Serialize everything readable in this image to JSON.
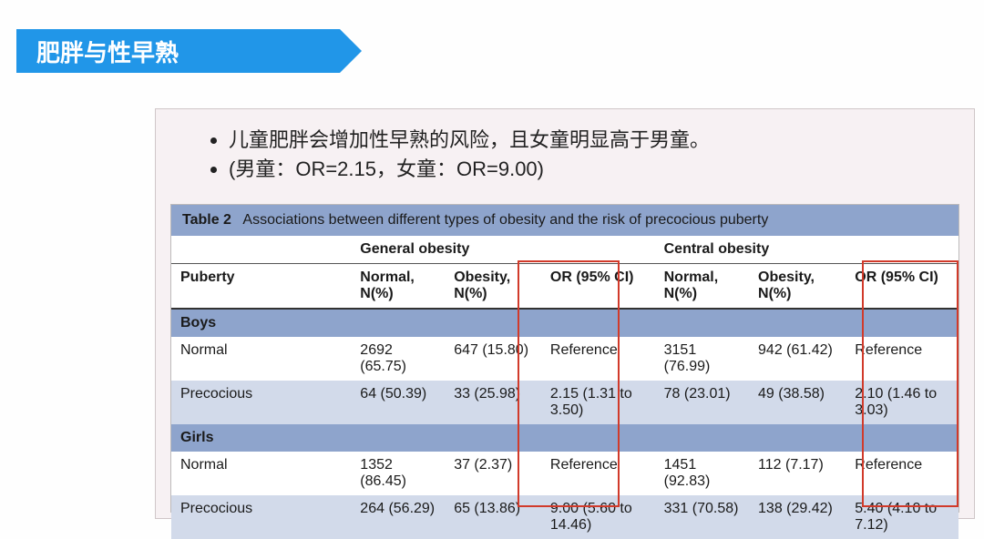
{
  "title": "肥胖与性早熟",
  "bullets": [
    "儿童肥胖会增加性早熟的风险，且女童明显高于男童。",
    "(男童：OR=2.15，女童：OR=9.00)"
  ],
  "table": {
    "caption_label": "Table 2",
    "caption_text": "Associations between different types of obesity and the risk of precocious puberty",
    "group_headers": [
      "",
      "General obesity",
      "Central obesity"
    ],
    "col_headers": [
      "Puberty",
      "Normal, N(%)",
      "Obesity, N(%)",
      "OR (95% CI)",
      "Normal, N(%)",
      "Obesity, N(%)",
      "OR (95% CI)"
    ],
    "sections": [
      {
        "label": "Boys",
        "rows": [
          {
            "label": "Normal",
            "cells": [
              "2692 (65.75)",
              "647 (15.80)",
              "Reference",
              "3151 (76.99)",
              "942 (61.42)",
              "Reference"
            ]
          },
          {
            "label": "Precocious",
            "cells": [
              "64 (50.39)",
              "33 (25.98)",
              "2.15 (1.31 to 3.50)",
              "78 (23.01)",
              "49 (38.58)",
              "2.10 (1.46 to 3.03)"
            ]
          }
        ]
      },
      {
        "label": "Girls",
        "rows": [
          {
            "label": "Normal",
            "cells": [
              "1352 (86.45)",
              "37 (2.37)",
              "Reference",
              "1451 (92.83)",
              "112 (7.17)",
              "Reference"
            ]
          },
          {
            "label": "Precocious",
            "cells": [
              "264 (56.29)",
              "65 (13.86)",
              "9.00 (5.60 to 14.46)",
              "331 (70.58)",
              "138 (29.42)",
              "5.40 (4.10 to 7.12)"
            ]
          }
        ]
      }
    ],
    "highlight_color": "#d13a2a",
    "header_bg": "#8ea4cc",
    "alt_row_bg": "#d2daea"
  }
}
